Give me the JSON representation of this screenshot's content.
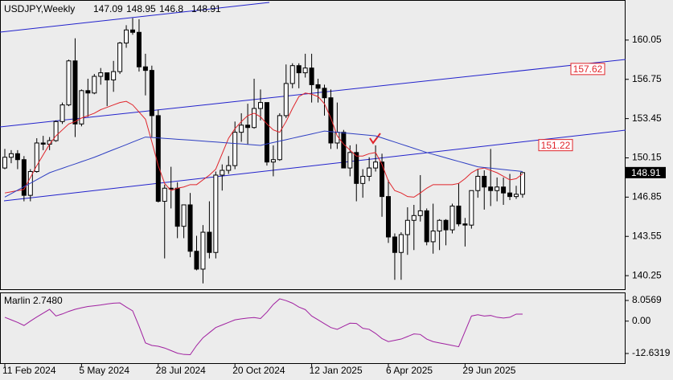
{
  "chart_data": {
    "type": "candlestick",
    "title": "USDJPY,Weekly",
    "categories": [
      "11 Feb 2024",
      null,
      null,
      null,
      null,
      null,
      null,
      null,
      null,
      null,
      null,
      null,
      "5 May 2024",
      null,
      null,
      null,
      null,
      null,
      null,
      null,
      null,
      null,
      null,
      null,
      "28 Jul 2024",
      null,
      null,
      null,
      null,
      null,
      null,
      null,
      null,
      null,
      null,
      null,
      "20 Oct 2024",
      null,
      null,
      null,
      null,
      null,
      null,
      null,
      null,
      null,
      null,
      null,
      "12 Jan 2025",
      null,
      null,
      null,
      null,
      null,
      null,
      null,
      null,
      null,
      null,
      null,
      "6 Apr 2025",
      null,
      null,
      null,
      null,
      null,
      null,
      null,
      null,
      null,
      null,
      null,
      "29 Jun 2025",
      null,
      null,
      null,
      null,
      null,
      null,
      null,
      null,
      null
    ],
    "open": [
      149.3,
      150.2,
      150.5,
      150.0,
      147.0,
      149.0,
      151.4,
      151.3,
      151.6,
      153.2,
      154.6,
      158.3,
      153.0,
      155.8,
      155.6,
      157.0,
      157.3,
      156.7,
      157.4,
      159.8,
      160.9,
      160.7,
      157.8,
      157.5,
      153.7,
      146.5,
      147.6,
      147.6,
      144.4,
      146.2,
      142.3,
      140.8,
      143.9,
      142.2,
      148.7,
      149.1,
      149.5,
      152.3,
      152.9,
      152.7,
      154.3,
      154.8,
      149.8,
      150.0,
      153.7,
      156.4,
      157.9,
      157.3,
      157.7,
      156.3,
      156.0,
      155.2,
      151.4,
      152.3,
      149.3,
      150.6,
      148.0,
      148.6,
      149.3,
      149.8,
      146.9,
      143.5,
      142.2,
      143.7,
      144.9,
      145.3,
      145.7,
      143.1,
      144.0,
      144.9,
      144.1,
      146.1,
      144.6,
      144.5,
      147.4,
      148.6,
      147.7,
      147.4,
      147.7,
      147.2,
      146.9,
      147.09
    ],
    "high": [
      150.9,
      150.8,
      150.8,
      150.3,
      149.2,
      151.8,
      152.0,
      151.9,
      153.3,
      154.8,
      158.4,
      160.2,
      155.9,
      156.8,
      157.2,
      157.7,
      157.3,
      158.3,
      159.9,
      161.3,
      161.9,
      161.8,
      158.9,
      157.9,
      154.2,
      147.9,
      149.4,
      148.1,
      146.2,
      147.2,
      143.6,
      144.5,
      146.5,
      149.0,
      149.6,
      150.3,
      153.2,
      153.9,
      154.7,
      156.8,
      155.9,
      154.8,
      151.2,
      153.9,
      158.0,
      158.1,
      158.1,
      158.9,
      158.9,
      156.8,
      156.3,
      155.9,
      154.8,
      152.5,
      151.2,
      151.3,
      149.2,
      150.2,
      151.2,
      150.5,
      148.3,
      143.8,
      143.9,
      146.0,
      146.2,
      148.7,
      145.9,
      146.3,
      145.0,
      145.0,
      146.3,
      148.0,
      145.1,
      147.2,
      149.2,
      149.1,
      150.9,
      148.5,
      148.5,
      148.8,
      147.8,
      148.95
    ],
    "low": [
      149.2,
      149.7,
      149.2,
      146.5,
      146.5,
      148.9,
      150.8,
      150.8,
      151.5,
      153.0,
      154.5,
      151.9,
      152.8,
      153.6,
      155.5,
      156.3,
      154.5,
      155.7,
      157.2,
      159.4,
      160.5,
      157.4,
      155.4,
      151.9,
      146.4,
      141.7,
      145.9,
      143.4,
      143.4,
      141.8,
      140.7,
      139.6,
      141.7,
      141.7,
      147.4,
      148.8,
      149.2,
      151.5,
      151.3,
      152.6,
      153.3,
      149.5,
      148.6,
      149.9,
      153.5,
      156.0,
      156.0,
      156.9,
      154.8,
      154.8,
      153.7,
      150.9,
      150.9,
      149.3,
      148.6,
      146.5,
      146.8,
      148.2,
      149.0,
      145.2,
      143.0,
      139.9,
      139.9,
      142.0,
      142.4,
      144.8,
      142.8,
      142.1,
      142.4,
      142.8,
      143.8,
      144.4,
      142.7,
      144.2,
      146.8,
      145.8,
      146.1,
      146.5,
      146.2,
      146.6,
      146.7,
      146.8
    ],
    "close": [
      150.2,
      150.5,
      150.0,
      147.0,
      149.0,
      151.4,
      151.3,
      151.6,
      153.2,
      154.6,
      158.3,
      153.0,
      155.8,
      155.6,
      157.0,
      157.3,
      156.7,
      157.4,
      159.8,
      160.9,
      160.7,
      157.8,
      157.5,
      153.7,
      146.5,
      147.6,
      147.6,
      144.4,
      146.2,
      142.3,
      140.8,
      143.9,
      142.2,
      148.7,
      149.1,
      149.5,
      152.3,
      152.9,
      152.7,
      154.3,
      154.8,
      149.8,
      150.0,
      153.7,
      156.4,
      157.9,
      157.3,
      157.7,
      156.3,
      156.0,
      155.2,
      151.4,
      152.3,
      149.3,
      150.6,
      148.0,
      148.6,
      149.3,
      149.8,
      146.9,
      143.5,
      142.2,
      143.7,
      144.9,
      145.3,
      145.7,
      143.1,
      144.0,
      144.9,
      144.1,
      146.1,
      144.6,
      144.5,
      147.4,
      148.6,
      147.7,
      147.4,
      147.7,
      147.2,
      146.9,
      147.09,
      148.91
    ],
    "up_color": "#ffffff",
    "down_color": "#000000",
    "overlays": [
      {
        "color": "#e0242a",
        "values": [
          147.2,
          147.3,
          147.4,
          147.5,
          148.5,
          149.5,
          150.4,
          151.3,
          152.0,
          152.5,
          153.0,
          153.2,
          153.5,
          153.7,
          153.9,
          154.2,
          154.4,
          154.6,
          154.8,
          154.9,
          154.6,
          154.0,
          153.4,
          151.5,
          149.5,
          148.0,
          147.4,
          147.6,
          147.7,
          147.9,
          147.9,
          148.3,
          148.7,
          149.2,
          150.5,
          151.8,
          152.6,
          153.2,
          153.7,
          153.9,
          153.6,
          153.0,
          152.5,
          152.3,
          153.2,
          154.3,
          155.3,
          155.6,
          155.5,
          155.3,
          154.7,
          153.5,
          152.0,
          151.3,
          150.8,
          150.3,
          150.3,
          150.5,
          150.6,
          149.6,
          148.2,
          147.4,
          147.2,
          146.9,
          146.85,
          147.2,
          147.6,
          147.9,
          147.9,
          147.9,
          147.9,
          148.0,
          148.4,
          148.9,
          149.2,
          149.3,
          149.1,
          148.9,
          148.6,
          148.3,
          148.4,
          148.8
        ]
      },
      {
        "color": "#2d3ec2",
        "values": [
          146.85,
          147.14,
          147.44,
          147.73,
          148.02,
          148.31,
          148.61,
          148.9,
          149.09,
          149.27,
          149.46,
          149.64,
          149.83,
          150.01,
          150.2,
          150.41,
          150.63,
          150.84,
          151.05,
          151.26,
          151.48,
          151.69,
          151.9,
          151.86,
          151.83,
          151.79,
          151.75,
          151.71,
          151.68,
          151.64,
          151.6,
          151.56,
          151.52,
          151.48,
          151.44,
          151.4,
          151.36,
          151.32,
          151.28,
          151.24,
          151.2,
          151.32,
          151.44,
          151.56,
          151.68,
          151.8,
          151.92,
          152.04,
          152.16,
          152.28,
          152.4,
          152.35,
          152.3,
          152.25,
          152.2,
          152.15,
          152.1,
          152.05,
          152.0,
          151.83,
          151.65,
          151.48,
          151.3,
          151.13,
          150.95,
          150.78,
          150.6,
          150.45,
          150.3,
          150.15,
          150.0,
          149.85,
          149.7,
          149.55,
          149.4,
          149.34,
          149.29,
          149.23,
          149.17,
          149.11,
          149.06,
          149.0
        ]
      }
    ],
    "levels": [
      {
        "value": 157.62,
        "color": "#e0242a"
      },
      {
        "value": 151.22,
        "color": "#e0242a"
      }
    ],
    "ylim": [
      139.11,
      163.35
    ],
    "yticks": [
      160.05,
      156.75,
      153.45,
      150.15,
      146.85,
      143.55,
      140.25
    ],
    "indicator": {
      "label": "Marlin 2.7480",
      "color": "#a020a0",
      "values": [
        1.5,
        0.5,
        -0.5,
        -1.7,
        0.0,
        1.6,
        3.1,
        4.6,
        2.0,
        2.8,
        3.8,
        4.6,
        5.2,
        5.7,
        6.0,
        6.3,
        6.7,
        7.0,
        7.1,
        5.5,
        4.0,
        -2.0,
        -8.5,
        -9.5,
        -9.8,
        -10.5,
        -11.5,
        -12.5,
        -13.0,
        -13.1,
        -9.5,
        -6.5,
        -4.5,
        -2.5,
        -1.5,
        -0.5,
        0.5,
        0.9,
        1.2,
        1.4,
        1.0,
        3.5,
        6.5,
        8.7,
        8.0,
        7.0,
        5.5,
        4.5,
        2.0,
        0.5,
        -1.0,
        -2.5,
        -3.2,
        -2.0,
        -0.8,
        -0.9,
        -2.8,
        -3.2,
        -4.8,
        -6.8,
        -8.0,
        -7.5,
        -7.0,
        -6.0,
        -5.0,
        -5.2,
        -7.0,
        -8.0,
        -8.5,
        -9.0,
        -9.5,
        -10.0,
        -4.0,
        2.0,
        2.5,
        2.0,
        2.2,
        1.5,
        1.2,
        1.5,
        2.748,
        2.748
      ],
      "ylim": [
        -16.39,
        10.88
      ],
      "yticks": [
        8.0569,
        {
          "value": 0,
          "label": "0.00"
        },
        -12.6319
      ]
    }
  }
}
